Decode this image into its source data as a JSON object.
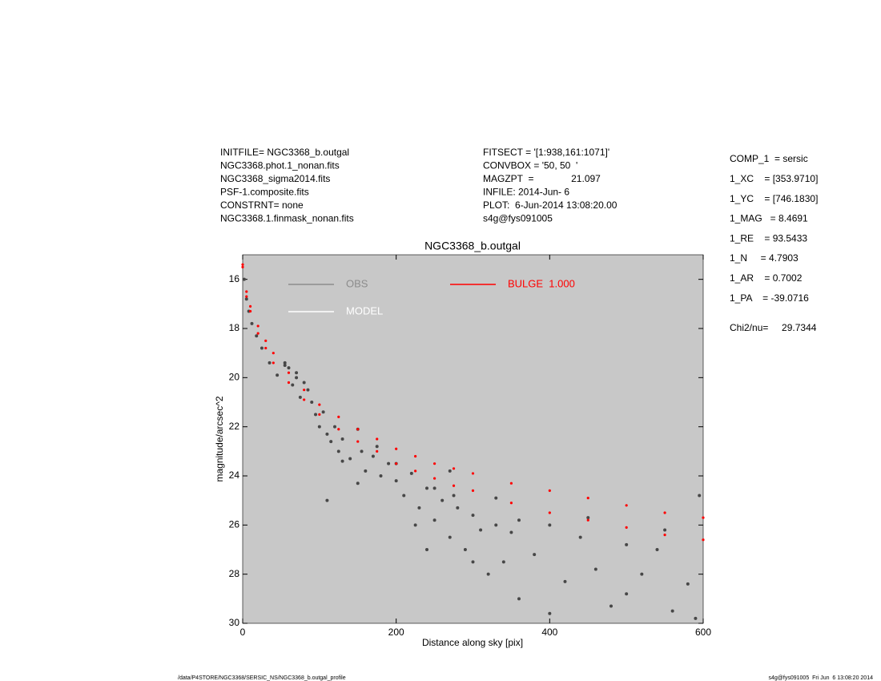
{
  "chart_data": {
    "type": "scatter",
    "title": "NGC3368_b.outgal",
    "x_label": "Distance along sky [pix]",
    "y_label": "magnitude/arcsec^2",
    "xlim": [
      0,
      600
    ],
    "ylim": [
      30,
      15
    ],
    "xticks": [
      0,
      200,
      400,
      600
    ],
    "yticks": [
      16,
      18,
      20,
      22,
      24,
      26,
      28,
      30
    ],
    "background": "#c8c8c8",
    "series": [
      {
        "name": "OBS",
        "color": "#474747",
        "legend_color": "#8c8c8c",
        "x": [
          2,
          5,
          8,
          12,
          18,
          25,
          35,
          45,
          55,
          60,
          65,
          70,
          75,
          80,
          90,
          95,
          100,
          105,
          110,
          115,
          120,
          125,
          130,
          140,
          150,
          155,
          160,
          170,
          180,
          190,
          200,
          210,
          220,
          230,
          240,
          250,
          260,
          270,
          280,
          290,
          300,
          310,
          320,
          330,
          340,
          350,
          360,
          380,
          400,
          420,
          440,
          460,
          480,
          500,
          520,
          540,
          560,
          580,
          595,
          55,
          70,
          85,
          110,
          130,
          150,
          175,
          200,
          225,
          250,
          275,
          300,
          330,
          360,
          400,
          450,
          500,
          550,
          590,
          240,
          270
        ],
        "values": [
          16.0,
          16.8,
          17.3,
          17.8,
          18.3,
          18.8,
          19.4,
          19.9,
          19.5,
          19.6,
          20.3,
          19.8,
          20.8,
          20.2,
          21.0,
          21.5,
          22.0,
          21.4,
          22.3,
          22.6,
          22.0,
          23.0,
          22.5,
          23.3,
          22.1,
          23.0,
          23.8,
          23.2,
          24.0,
          23.5,
          24.2,
          24.8,
          23.9,
          25.3,
          24.5,
          25.8,
          25.0,
          26.5,
          25.3,
          27.0,
          25.6,
          26.2,
          28.0,
          26.0,
          27.5,
          26.3,
          29.0,
          27.2,
          26.0,
          28.3,
          26.5,
          27.8,
          29.3,
          26.8,
          28.0,
          27.0,
          29.5,
          28.4,
          24.8,
          19.4,
          20.0,
          20.5,
          25.0,
          23.4,
          24.3,
          22.8,
          23.5,
          26.0,
          24.5,
          24.8,
          27.5,
          24.9,
          25.8,
          29.6,
          25.7,
          28.8,
          26.2,
          29.8,
          27.0,
          23.8
        ]
      },
      {
        "name": "MODEL",
        "color": "#ffffff",
        "x": [],
        "values": []
      },
      {
        "name": "BULGE  1.000",
        "color": "#ff0000",
        "x": [
          0,
          5,
          10,
          20,
          30,
          40,
          60,
          80,
          100,
          125,
          150,
          175,
          200,
          225,
          250,
          275,
          300,
          350,
          400,
          450,
          500,
          550,
          600,
          0,
          5,
          10,
          20,
          30,
          40,
          60,
          80,
          100,
          125,
          150,
          175,
          200,
          225,
          250,
          275,
          300,
          350,
          400,
          450,
          500,
          550,
          600
        ],
        "values": [
          15.4,
          16.5,
          17.1,
          17.9,
          18.5,
          19.0,
          19.8,
          20.5,
          21.1,
          21.6,
          22.1,
          22.5,
          22.9,
          23.2,
          23.5,
          23.7,
          23.9,
          24.3,
          24.6,
          24.9,
          25.2,
          25.5,
          25.7,
          15.5,
          16.7,
          17.3,
          18.2,
          18.8,
          19.4,
          20.2,
          20.9,
          21.5,
          22.1,
          22.6,
          23.0,
          23.5,
          23.8,
          24.1,
          24.4,
          24.6,
          25.1,
          25.5,
          25.8,
          26.1,
          26.4,
          26.6
        ]
      }
    ],
    "info_left": [
      "INITFILE= NGC3368_b.outgal",
      "NGC3368.phot.1_nonan.fits",
      "NGC3368_sigma2014.fits",
      "PSF-1.composite.fits",
      "CONSTRNT= none",
      "NGC3368.1.finmask_nonan.fits"
    ],
    "info_mid": [
      "FITSECT = '[1:938,161:1071]'",
      "CONVBOX = '50, 50  '",
      "MAGZPT  =              21.097",
      "INFILE: 2014-Jun- 6",
      "PLOT:  6-Jun-2014 13:08:20.00",
      "s4g@fys091005"
    ],
    "params": [
      "COMP_1  = sersic",
      "1_XC    = [353.9710]",
      "1_YC    = [746.1830]",
      "1_MAG   = 8.4691",
      "1_RE    = 93.5433",
      "1_N     = 4.7903",
      "1_AR    = 0.7002",
      "1_PA    = -39.0716"
    ],
    "chi2": "Chi2/nu=     29.7344",
    "footer_left": "/data/P4STORE/NGC3368/SERSIC_NS/NGC3368_b.outgal_profile",
    "footer_right": "s4g@fys091005  Fri Jun  6 13:08:20 2014"
  }
}
